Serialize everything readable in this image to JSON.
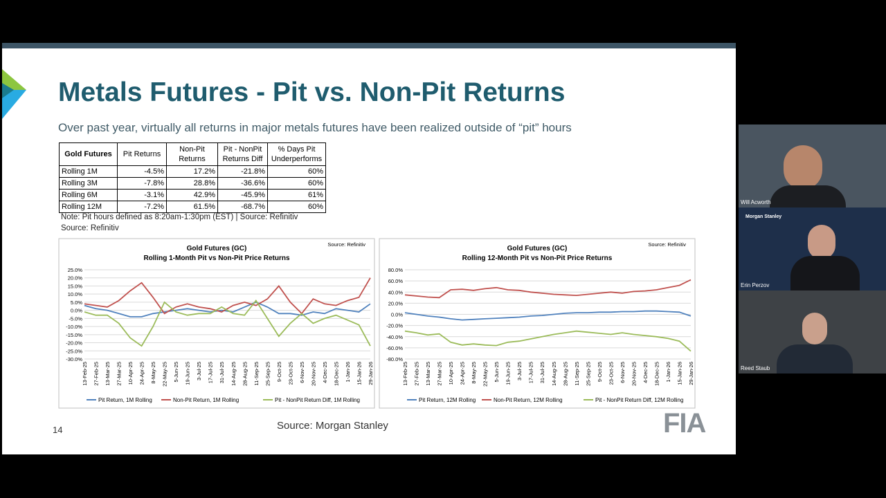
{
  "slide": {
    "title": "Metals Futures - Pit vs. Non-Pit Returns",
    "subtitle": "Over past year, virtually all returns in major metals futures have been realized outside of “pit” hours",
    "table": {
      "header": [
        "Gold Futures",
        "Pit Returns",
        "Non-Pit Returns",
        "Pit - NonPit Returns Diff",
        "% Days Pit Underperforms"
      ],
      "rows": [
        [
          "Rolling 1M",
          "-4.5%",
          "17.2%",
          "-21.8%",
          "60%"
        ],
        [
          "Rolling 3M",
          "-7.8%",
          "28.8%",
          "-36.6%",
          "60%"
        ],
        [
          "Rolling 6M",
          "-3.1%",
          "42.9%",
          "-45.9%",
          "61%"
        ],
        [
          "Rolling 12M",
          "-7.2%",
          "61.5%",
          "-68.7%",
          "60%"
        ]
      ]
    },
    "note": "Note: Pit hours defined as 8:20am-1:30pm (EST) | Source: Refinitiv",
    "note_source": "Source: Refinitiv",
    "page_number": "14",
    "footer_source": "Source: Morgan Stanley",
    "logo": "FIA"
  },
  "participants": [
    "Will Acworth",
    "Morgan Stanley",
    "Erin Perzov",
    "Reed Staub"
  ],
  "chart_data": [
    {
      "type": "line",
      "title": "Gold Futures (GC)",
      "subtitle": "Rolling 1-Month Pit vs Non-Pit Price Returns",
      "annotation": "Source: Refinitiv",
      "categories": [
        "13-Feb-25",
        "27-Feb-25",
        "13-Mar-25",
        "27-Mar-25",
        "10-Apr-25",
        "24-Apr-25",
        "8-May-25",
        "22-May-25",
        "5-Jun-25",
        "19-Jun-25",
        "3-Jul-25",
        "17-Jul-25",
        "31-Jul-25",
        "14-Aug-25",
        "28-Aug-25",
        "11-Sep-25",
        "25-Sep-25",
        "9-Oct-25",
        "23-Oct-25",
        "6-Nov-25",
        "20-Nov-25",
        "4-Dec-25",
        "18-Dec-25",
        "1-Jan-26",
        "15-Jan-26",
        "29-Jan-26"
      ],
      "ylim": [
        -30,
        25
      ],
      "yticks": [
        {
          "value": -30,
          "label": "-30.0%"
        },
        {
          "value": -25,
          "label": "-25.0%"
        },
        {
          "value": -20,
          "label": "-20.0%"
        },
        {
          "value": -15,
          "label": "-15.0%"
        },
        {
          "value": -10,
          "label": "-10.0%"
        },
        {
          "value": -5,
          "label": "-5.0%"
        },
        {
          "value": 0,
          "label": "0.0%"
        },
        {
          "value": 5,
          "label": "5.0%"
        },
        {
          "value": 10,
          "label": "10.0%"
        },
        {
          "value": 15,
          "label": "15.0%"
        },
        {
          "value": 20,
          "label": "20.0%"
        },
        {
          "value": 25,
          "label": "25.0%"
        }
      ],
      "grid": true,
      "series": [
        {
          "name": "Pit Return, 1M Rolling",
          "color": "#4f81bd",
          "values": [
            3,
            1,
            0,
            -2,
            -4,
            -4,
            -2,
            -1,
            0,
            1,
            0,
            -1,
            0,
            -1,
            2,
            5,
            2,
            -2,
            -2,
            -3,
            -1,
            -2,
            1,
            0,
            -1,
            4
          ]
        },
        {
          "name": "Non-Pit Return, 1M Rolling",
          "color": "#c0504d",
          "values": [
            4,
            3,
            2,
            6,
            12,
            17,
            8,
            -2,
            2,
            4,
            2,
            1,
            -1,
            3,
            5,
            3,
            7,
            15,
            5,
            -2,
            7,
            4,
            3,
            6,
            8,
            20
          ]
        },
        {
          "name": "Pit - NonPit Return Diff, 1M Rolling",
          "color": "#9bbb59",
          "values": [
            -1,
            -3,
            -3,
            -8,
            -17,
            -22,
            -10,
            5,
            -1,
            -3,
            -2,
            -2,
            2,
            -2,
            -3,
            6,
            -5,
            -16,
            -8,
            -2,
            -8,
            -5,
            -3,
            -6,
            -9,
            -22
          ]
        }
      ]
    },
    {
      "type": "line",
      "title": "Gold Futures (GC)",
      "subtitle": "Rolling 12-Month Pit vs Non-Pit Price Returns",
      "annotation": "Source: Refinitiv",
      "categories": [
        "13-Feb-25",
        "27-Feb-25",
        "13-Mar-25",
        "27-Mar-25",
        "10-Apr-25",
        "24-Apr-25",
        "8-May-25",
        "22-May-25",
        "5-Jun-25",
        "19-Jun-25",
        "3-Jul-25",
        "17-Jul-25",
        "31-Jul-25",
        "14-Aug-25",
        "28-Aug-25",
        "11-Sep-25",
        "25-Sep-25",
        "9-Oct-25",
        "23-Oct-25",
        "6-Nov-25",
        "20-Nov-25",
        "4-Dec-25",
        "18-Dec-25",
        "1-Jan-26",
        "15-Jan-26",
        "29-Jan-26"
      ],
      "ylim": [
        -80,
        80
      ],
      "yticks": [
        {
          "value": -80,
          "label": "-80.0%"
        },
        {
          "value": -60,
          "label": "-60.0%"
        },
        {
          "value": -40,
          "label": "-40.0%"
        },
        {
          "value": -20,
          "label": "-20.0%"
        },
        {
          "value": 0,
          "label": "0.0%"
        },
        {
          "value": 20,
          "label": "20.0%"
        },
        {
          "value": 40,
          "label": "40.0%"
        },
        {
          "value": 60,
          "label": "60.0%"
        },
        {
          "value": 80,
          "label": "80.0%"
        }
      ],
      "grid": true,
      "series": [
        {
          "name": "Pit Return, 12M Rolling",
          "color": "#4f81bd",
          "values": [
            3,
            0,
            -3,
            -5,
            -8,
            -10,
            -9,
            -8,
            -7,
            -6,
            -5,
            -3,
            -2,
            0,
            2,
            3,
            3,
            4,
            4,
            5,
            5,
            6,
            6,
            5,
            4,
            -3
          ]
        },
        {
          "name": "Non-Pit Return, 12M Rolling",
          "color": "#c0504d",
          "values": [
            35,
            33,
            31,
            30,
            44,
            45,
            43,
            46,
            48,
            44,
            43,
            40,
            38,
            36,
            35,
            34,
            36,
            38,
            40,
            38,
            41,
            42,
            44,
            48,
            52,
            62
          ]
        },
        {
          "name": "Pit - NonPit Return Diff, 12M Rolling",
          "color": "#9bbb59",
          "values": [
            -30,
            -33,
            -37,
            -35,
            -50,
            -55,
            -53,
            -55,
            -56,
            -50,
            -48,
            -44,
            -40,
            -36,
            -33,
            -30,
            -32,
            -34,
            -36,
            -33,
            -36,
            -38,
            -40,
            -43,
            -48,
            -66
          ]
        }
      ]
    }
  ]
}
